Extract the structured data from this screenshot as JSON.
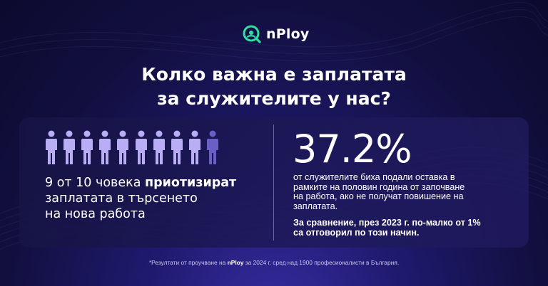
{
  "colors": {
    "background": "#120f3f",
    "accent_green": "#2fe0a0",
    "person_active": "#b9aef5",
    "person_inactive": "#6a5fc4"
  },
  "brand": {
    "name": "nPloy",
    "icon": "search-magnifier-icon"
  },
  "headline": {
    "line1": "Колко важна е заплатата",
    "line2": "за служителите у нас?"
  },
  "people_icons": {
    "total": 10,
    "highlighted": 9,
    "icon": "person-icon"
  },
  "left": {
    "text_regular_1": "9 от 10 човека ",
    "text_bold": "приотизират",
    "text_regular_2": "заплатата в търсенето",
    "text_regular_3": "на нова работа"
  },
  "right": {
    "percent": "37.2%",
    "desc_line1": "от служителите биха подали оставка в",
    "desc_line2": "рамките на половин година от започване",
    "desc_line3": "на работа, ако не получат повишение на",
    "desc_line4": "заплатата.",
    "compare_line1": "За сравнение, през 2023 г. по-малко от 1%",
    "compare_line2": "са отговорил по този начин."
  },
  "footnote": {
    "prefix": "*Резултати от проучване на ",
    "brand": "nPloy",
    "suffix": " за 2024 г. сред над 1900 професионалисти в България."
  }
}
